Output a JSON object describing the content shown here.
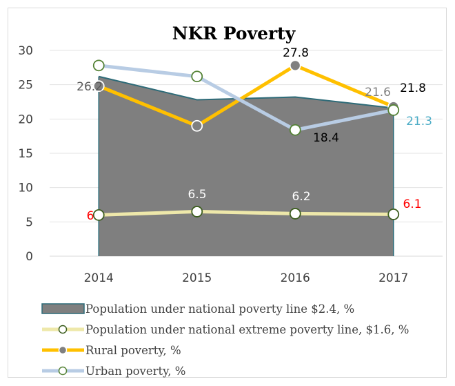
{
  "chart_data": {
    "type": "line",
    "title": "NKR Poverty",
    "xlabel": "",
    "ylabel": "",
    "categories": [
      "2014",
      "2015",
      "2016",
      "2017"
    ],
    "ylim": [
      0,
      30
    ],
    "yticks": [
      "0",
      "5",
      "10",
      "15",
      "20",
      "25",
      "30"
    ],
    "grid": "horizontal",
    "legend_position": "bottom",
    "series": [
      {
        "name": "Population under national poverty line $2.4, %",
        "kind": "area",
        "values": [
          26.2,
          22.8,
          23.2,
          21.6
        ],
        "color": "#7f7f7f",
        "edge_color": "#2e6b78",
        "labels": [
          {
            "index": 0,
            "text": "26.2",
            "color": "#595959"
          },
          {
            "index": 3,
            "text": "21.6",
            "color": "#7f7f7f"
          }
        ]
      },
      {
        "name": "Population under national extreme poverty line, $1.6, %",
        "kind": "line",
        "values": [
          6.0,
          6.5,
          6.2,
          6.1
        ],
        "color": "#eee8aa",
        "marker_fill": "#ffffff",
        "marker_edge": "#3d5e1f",
        "labels": [
          {
            "index": 0,
            "text": "6",
            "color": "#ff0000"
          },
          {
            "index": 1,
            "text": "6.5",
            "color": "#ffffff"
          },
          {
            "index": 2,
            "text": "6.2",
            "color": "#ffffff"
          },
          {
            "index": 3,
            "text": "6.1",
            "color": "#ff0000"
          }
        ]
      },
      {
        "name": "Rural poverty, %",
        "kind": "line",
        "values": [
          24.8,
          19.0,
          27.8,
          21.8
        ],
        "color": "#ffc000",
        "marker_fill": "#808080",
        "marker_edge": "#ffffff",
        "labels": [
          {
            "index": 2,
            "text": "27.8",
            "color": "#000000"
          },
          {
            "index": 3,
            "text": "21.8",
            "color": "#000000"
          }
        ]
      },
      {
        "name": "Urban poverty, %",
        "kind": "line",
        "values": [
          27.8,
          26.2,
          18.4,
          21.3
        ],
        "color": "#b8cce4",
        "marker_fill": "#ffffff",
        "marker_edge": "#548235",
        "labels": [
          {
            "index": 2,
            "text": "18.4",
            "color": "#000000"
          },
          {
            "index": 3,
            "text": "21.3",
            "color": "#4bacc6"
          }
        ]
      }
    ]
  }
}
